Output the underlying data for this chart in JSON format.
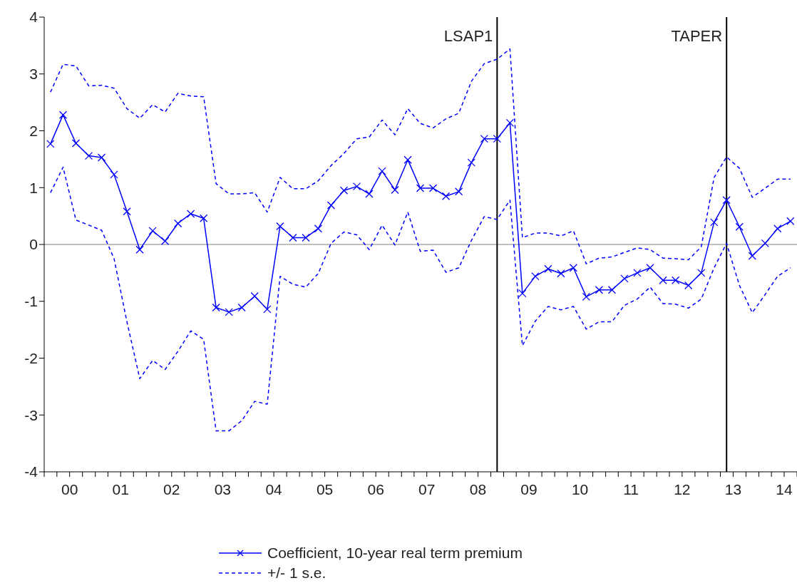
{
  "chart_data": {
    "type": "line",
    "legend": "bottom",
    "grid": false,
    "x": [
      "2000-02-15",
      "2000-05-15",
      "2000-08-15",
      "2000-11-15",
      "2001-02-15",
      "2001-05-15",
      "2001-08-15",
      "2001-11-15",
      "2002-02-15",
      "2002-05-15",
      "2002-08-15",
      "2002-11-15",
      "2003-02-15",
      "2003-05-15",
      "2003-08-15",
      "2003-11-15",
      "2004-02-15",
      "2004-05-15",
      "2004-08-15",
      "2004-11-15",
      "2005-02-15",
      "2005-05-15",
      "2005-08-15",
      "2005-11-15",
      "2006-02-15",
      "2006-05-15",
      "2006-08-15",
      "2006-11-15",
      "2007-02-15",
      "2007-05-15",
      "2007-08-15",
      "2007-11-15",
      "2008-02-15",
      "2008-05-15",
      "2008-08-15",
      "2008-11-15",
      "2009-02-15",
      "2009-05-15",
      "2009-08-15",
      "2009-11-15",
      "2010-02-15",
      "2010-05-15",
      "2010-08-15",
      "2010-11-15",
      "2011-02-15",
      "2011-05-15",
      "2011-08-15",
      "2011-11-15",
      "2012-02-15",
      "2012-05-15",
      "2012-08-15",
      "2012-11-15",
      "2013-02-15",
      "2013-05-15",
      "2013-08-15",
      "2013-11-15",
      "2014-02-15",
      "2014-05-15",
      "2014-08-15"
    ],
    "series": [
      {
        "name": "Coefficient, 10-year real term premium",
        "color": "#0000ff",
        "marker": "cross",
        "line_style": "solid",
        "values": [
          1.77,
          2.28,
          1.78,
          1.56,
          1.53,
          1.23,
          0.58,
          -0.09,
          0.24,
          0.06,
          0.37,
          0.54,
          0.46,
          -1.11,
          -1.19,
          -1.11,
          -0.91,
          -1.14,
          0.32,
          0.12,
          0.12,
          0.28,
          0.69,
          0.95,
          1.02,
          0.89,
          1.29,
          0.96,
          1.49,
          0.99,
          0.99,
          0.85,
          0.93,
          1.44,
          1.86,
          1.86,
          2.14,
          -0.86,
          -0.56,
          -0.43,
          -0.51,
          -0.41,
          -0.92,
          -0.8,
          -0.8,
          -0.6,
          -0.5,
          -0.41,
          -0.63,
          -0.63,
          -0.72,
          -0.5,
          0.39,
          0.78,
          0.31,
          -0.2,
          0.02,
          0.28,
          0.41
        ]
      },
      {
        "name": "+/- 1 s.e.",
        "color": "#0000ff",
        "marker": "none",
        "line_style": "dashed",
        "values": [
          2.68,
          3.17,
          3.14,
          2.79,
          2.8,
          2.75,
          2.39,
          2.22,
          2.46,
          2.33,
          2.66,
          2.61,
          2.6,
          1.07,
          0.89,
          0.89,
          0.91,
          0.57,
          1.18,
          0.98,
          0.98,
          1.12,
          1.39,
          1.6,
          1.86,
          1.89,
          2.19,
          1.93,
          2.39,
          2.13,
          2.05,
          2.21,
          2.31,
          2.87,
          3.18,
          3.26,
          3.44,
          0.12,
          0.2,
          0.2,
          0.15,
          0.24,
          -0.34,
          -0.24,
          -0.22,
          -0.14,
          -0.06,
          -0.09,
          -0.24,
          -0.25,
          -0.27,
          -0.04,
          1.18,
          1.54,
          1.34,
          0.83,
          0.99,
          1.15,
          1.15
        ]
      },
      {
        "color": "#0000ff",
        "marker": "none",
        "line_style": "dashed",
        "values": [
          0.91,
          1.36,
          0.43,
          0.34,
          0.25,
          -0.25,
          -1.36,
          -2.36,
          -2.04,
          -2.2,
          -1.88,
          -1.52,
          -1.67,
          -3.28,
          -3.28,
          -3.1,
          -2.76,
          -2.81,
          -0.56,
          -0.7,
          -0.75,
          -0.51,
          0.02,
          0.22,
          0.17,
          -0.09,
          0.34,
          -0.01,
          0.57,
          -0.12,
          -0.1,
          -0.49,
          -0.41,
          0.07,
          0.49,
          0.44,
          0.78,
          -1.78,
          -1.35,
          -1.09,
          -1.15,
          -1.09,
          -1.49,
          -1.36,
          -1.36,
          -1.07,
          -0.96,
          -0.75,
          -1.04,
          -1.05,
          -1.12,
          -0.96,
          -0.41,
          0.02,
          -0.72,
          -1.2,
          -0.88,
          -0.56,
          -0.41
        ]
      }
    ],
    "ref_lines": [
      {
        "axis": "y",
        "value": 0,
        "color": "#808080",
        "line_style": "solid"
      },
      {
        "axis": "x",
        "value": "2008-11-15",
        "label": "LSAP1",
        "color": "#000000",
        "line_style": "solid"
      },
      {
        "axis": "x",
        "value": "2013-05-15",
        "label": "TAPER",
        "color": "#000000",
        "line_style": "solid"
      }
    ],
    "xlim": [
      "2000-01-01",
      "2014-10-01"
    ],
    "xticks": [
      {
        "value": "2000-01-01",
        "label": null
      },
      {
        "value": "2000-04-01",
        "label": null
      },
      {
        "value": "2000-07-01",
        "label": "00"
      },
      {
        "value": "2000-10-01",
        "label": null
      },
      {
        "value": "2001-01-01",
        "label": null
      },
      {
        "value": "2001-04-01",
        "label": null
      },
      {
        "value": "2001-07-01",
        "label": "01"
      },
      {
        "value": "2001-10-01",
        "label": null
      },
      {
        "value": "2002-01-01",
        "label": null
      },
      {
        "value": "2002-04-01",
        "label": null
      },
      {
        "value": "2002-07-01",
        "label": "02"
      },
      {
        "value": "2002-10-01",
        "label": null
      },
      {
        "value": "2003-01-01",
        "label": null
      },
      {
        "value": "2003-04-01",
        "label": null
      },
      {
        "value": "2003-07-01",
        "label": "03"
      },
      {
        "value": "2003-10-01",
        "label": null
      },
      {
        "value": "2004-01-01",
        "label": null
      },
      {
        "value": "2004-04-01",
        "label": null
      },
      {
        "value": "2004-07-01",
        "label": "04"
      },
      {
        "value": "2004-10-01",
        "label": null
      },
      {
        "value": "2005-01-01",
        "label": null
      },
      {
        "value": "2005-04-01",
        "label": null
      },
      {
        "value": "2005-07-01",
        "label": "05"
      },
      {
        "value": "2005-10-01",
        "label": null
      },
      {
        "value": "2006-01-01",
        "label": null
      },
      {
        "value": "2006-04-01",
        "label": null
      },
      {
        "value": "2006-07-01",
        "label": "06"
      },
      {
        "value": "2006-10-01",
        "label": null
      },
      {
        "value": "2007-01-01",
        "label": null
      },
      {
        "value": "2007-04-01",
        "label": null
      },
      {
        "value": "2007-07-01",
        "label": "07"
      },
      {
        "value": "2007-10-01",
        "label": null
      },
      {
        "value": "2008-01-01",
        "label": null
      },
      {
        "value": "2008-04-01",
        "label": null
      },
      {
        "value": "2008-07-01",
        "label": "08"
      },
      {
        "value": "2008-10-01",
        "label": null
      },
      {
        "value": "2009-01-01",
        "label": null
      },
      {
        "value": "2009-04-01",
        "label": null
      },
      {
        "value": "2009-07-01",
        "label": "09"
      },
      {
        "value": "2009-10-01",
        "label": null
      },
      {
        "value": "2010-01-01",
        "label": null
      },
      {
        "value": "2010-04-01",
        "label": null
      },
      {
        "value": "2010-07-01",
        "label": "10"
      },
      {
        "value": "2010-10-01",
        "label": null
      },
      {
        "value": "2011-01-01",
        "label": null
      },
      {
        "value": "2011-04-01",
        "label": null
      },
      {
        "value": "2011-07-01",
        "label": "11"
      },
      {
        "value": "2011-10-01",
        "label": null
      },
      {
        "value": "2012-01-01",
        "label": null
      },
      {
        "value": "2012-04-01",
        "label": null
      },
      {
        "value": "2012-07-01",
        "label": "12"
      },
      {
        "value": "2012-10-01",
        "label": null
      },
      {
        "value": "2013-01-01",
        "label": null
      },
      {
        "value": "2013-04-01",
        "label": null
      },
      {
        "value": "2013-07-01",
        "label": "13"
      },
      {
        "value": "2013-10-01",
        "label": null
      },
      {
        "value": "2014-01-01",
        "label": null
      },
      {
        "value": "2014-04-01",
        "label": null
      },
      {
        "value": "2014-07-01",
        "label": "14"
      },
      {
        "value": "2014-10-01",
        "label": null
      }
    ],
    "ylim": [
      -4,
      4
    ],
    "yticks": [
      -4,
      -3,
      -2,
      -1,
      0,
      1,
      2,
      3,
      4
    ]
  }
}
